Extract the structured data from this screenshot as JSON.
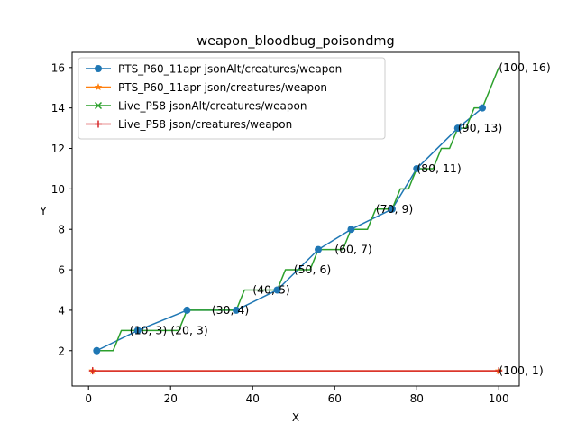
{
  "chart_data": {
    "type": "line",
    "title": "weapon_bloodbug_poisondmg",
    "xlabel": "X",
    "ylabel": "Y",
    "xlim": [
      -4,
      105
    ],
    "ylim": [
      0.25,
      16.75
    ],
    "xticks": [
      0,
      20,
      40,
      60,
      80,
      100
    ],
    "yticks": [
      2,
      4,
      6,
      8,
      10,
      12,
      14,
      16
    ],
    "grid": false,
    "legend_position": "top-left",
    "series": [
      {
        "name": "PTS_P60_11apr jsonAlt/creatures/weapon",
        "color": "#1f77b4",
        "marker": "circle",
        "x": [
          2,
          12,
          24,
          36,
          46,
          56,
          64,
          74,
          80,
          90,
          96
        ],
        "y": [
          2,
          3,
          4,
          4,
          5,
          7,
          8,
          9,
          11,
          13,
          14
        ]
      },
      {
        "name": "PTS_P60_11apr json/creatures/weapon",
        "color": "#ff7f0e",
        "marker": "star",
        "x": [
          1,
          100
        ],
        "y": [
          1,
          1
        ]
      },
      {
        "name": "Live_P58 jsonAlt/creatures/weapon",
        "color": "#2ca02c",
        "marker": "x",
        "x": [
          2,
          4,
          6,
          8,
          10,
          12,
          14,
          16,
          18,
          20,
          22,
          24,
          26,
          28,
          30,
          32,
          34,
          36,
          38,
          40,
          42,
          44,
          46,
          48,
          50,
          52,
          54,
          56,
          58,
          60,
          62,
          64,
          66,
          68,
          70,
          72,
          74,
          76,
          78,
          80,
          82,
          84,
          86,
          88,
          90,
          92,
          94,
          96,
          98,
          100
        ],
        "y": [
          2,
          2,
          2,
          3,
          3,
          3,
          3,
          3,
          3,
          3,
          3,
          4,
          4,
          4,
          4,
          4,
          4,
          4,
          5,
          5,
          5,
          5,
          5,
          6,
          6,
          6,
          6,
          7,
          7,
          7,
          7,
          8,
          8,
          8,
          9,
          9,
          9,
          10,
          10,
          11,
          11,
          11,
          12,
          12,
          13,
          13,
          14,
          14,
          15,
          16
        ]
      },
      {
        "name": "Live_P58 json/creatures/weapon",
        "color": "#d62728",
        "marker": "plus",
        "x": [
          1,
          100
        ],
        "y": [
          1,
          1
        ]
      }
    ],
    "annotations": [
      {
        "text": "(10, 3)",
        "x": 10,
        "y": 3
      },
      {
        "text": "(20, 3)",
        "x": 20,
        "y": 3
      },
      {
        "text": "(30, 4)",
        "x": 30,
        "y": 4
      },
      {
        "text": "(40, 5)",
        "x": 40,
        "y": 5
      },
      {
        "text": "(50, 6)",
        "x": 50,
        "y": 6
      },
      {
        "text": "(60, 7)",
        "x": 60,
        "y": 7
      },
      {
        "text": "(70, 9)",
        "x": 70,
        "y": 9
      },
      {
        "text": "(80, 11)",
        "x": 80,
        "y": 11
      },
      {
        "text": "(90, 13)",
        "x": 90,
        "y": 13
      },
      {
        "text": "(100, 16)",
        "x": 100,
        "y": 16
      },
      {
        "text": "(100, 1)",
        "x": 100,
        "y": 1
      }
    ]
  }
}
